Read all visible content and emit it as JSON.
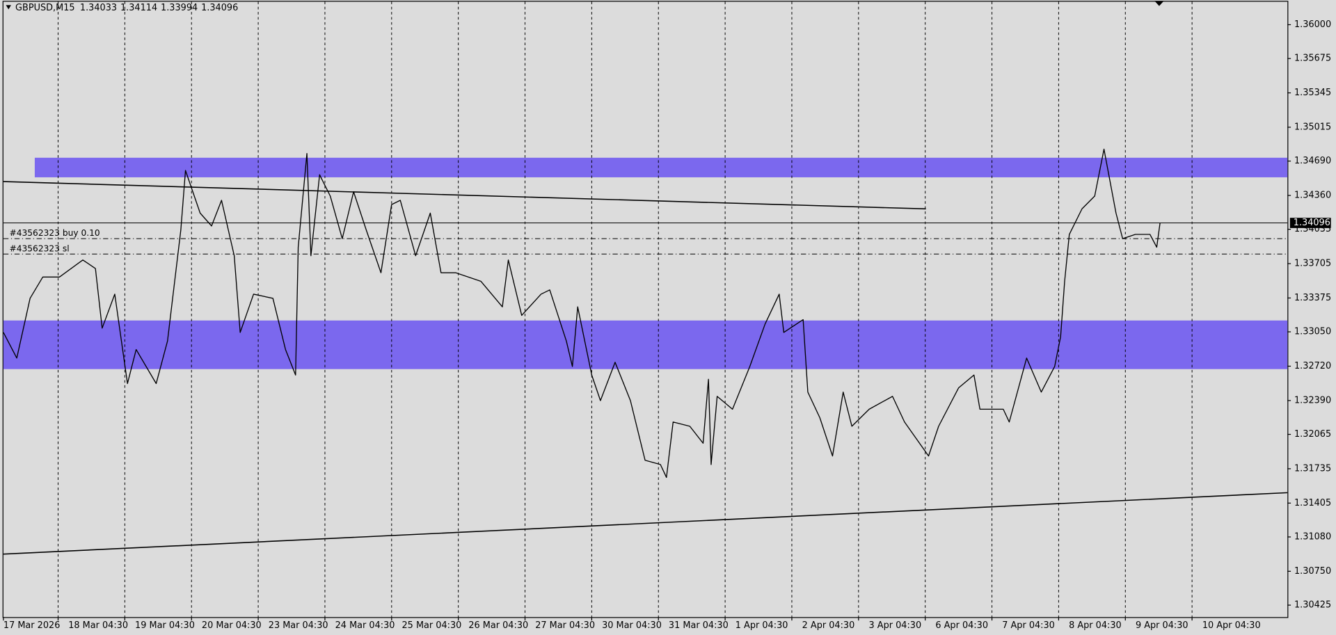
{
  "chart_data": {
    "type": "line",
    "title": "GBPUSD,M15",
    "ohlc": [
      1.34033,
      1.34114,
      1.33994,
      1.34096
    ],
    "color": "#000000",
    "x": [
      0,
      0.2,
      0.4,
      0.59,
      0.84,
      1.19,
      1.38,
      1.48,
      1.67,
      1.86,
      1.99,
      2.29,
      2.46,
      2.66,
      2.73,
      2.95,
      3.12,
      3.27,
      3.46,
      3.55,
      3.75,
      4.04,
      4.23,
      4.38,
      4.42,
      4.55,
      4.61,
      4.74,
      4.9,
      5.08,
      5.25,
      5.44,
      5.66,
      5.82,
      5.95,
      6.18,
      6.4,
      6.56,
      6.78,
      7.16,
      7.48,
      7.57,
      7.77,
      8.06,
      8.19,
      8.44,
      8.53,
      8.61,
      8.82,
      8.95,
      9.17,
      9.4,
      9.62,
      9.85,
      9.94,
      10.04,
      10.29,
      10.49,
      10.57,
      10.61,
      10.7,
      10.93,
      11.19,
      11.42,
      11.63,
      11.7,
      11.99,
      12.06,
      12.24,
      12.43,
      12.59,
      12.72,
      12.98,
      13.33,
      13.51,
      13.87,
      14.02,
      14.32,
      14.55,
      14.64,
      14.99,
      15.08,
      15.34,
      15.56,
      15.76,
      15.85,
      15.91,
      15.98,
      16.17,
      16.36,
      16.5,
      16.68,
      16.78,
      16.97,
      17.19,
      17.29,
      17.34
    ],
    "values": [
      1.33044,
      1.32798,
      1.33372,
      1.33576,
      1.33576,
      1.3374,
      1.33658,
      1.33085,
      1.33412,
      1.32553,
      1.3288,
      1.32553,
      1.32962,
      1.34027,
      1.346,
      1.3419,
      1.34067,
      1.34313,
      1.33781,
      1.33044,
      1.33412,
      1.33372,
      1.3288,
      1.32635,
      1.33863,
      1.34763,
      1.33781,
      1.34559,
      1.34354,
      1.33945,
      1.34395,
      1.34027,
      1.33617,
      1.34272,
      1.34313,
      1.33781,
      1.3419,
      1.33617,
      1.33617,
      1.33535,
      1.3329,
      1.3374,
      1.33208,
      1.33412,
      1.33453,
      1.32962,
      1.32717,
      1.3329,
      1.32635,
      1.32389,
      1.32758,
      1.32389,
      1.31816,
      1.31775,
      1.31652,
      1.32184,
      1.32143,
      1.3198,
      1.32594,
      1.31775,
      1.3243,
      1.32307,
      1.32717,
      1.33126,
      1.33412,
      1.33044,
      1.33167,
      1.32471,
      1.32225,
      1.31857,
      1.32471,
      1.32143,
      1.32307,
      1.3243,
      1.32184,
      1.31857,
      1.32143,
      1.32512,
      1.32635,
      1.32307,
      1.32307,
      1.32184,
      1.32798,
      1.32471,
      1.32717,
      1.33003,
      1.33535,
      1.33986,
      1.34231,
      1.34354,
      1.34804,
      1.3419,
      1.33945,
      1.33986,
      1.33986,
      1.33863,
      1.34096
    ],
    "xlim": [
      0,
      19.25
    ],
    "ylim": [
      1.3031,
      1.36237
    ],
    "xticks": [
      {
        "value": 0,
        "label": "17 Mar 2026"
      },
      {
        "value": 0.82,
        "label": "18 Mar 04:30"
      },
      {
        "value": 1.82,
        "label": "19 Mar 04:30"
      },
      {
        "value": 2.82,
        "label": "20 Mar 04:30"
      },
      {
        "value": 3.82,
        "label": "23 Mar 04:30"
      },
      {
        "value": 4.82,
        "label": "24 Mar 04:30"
      },
      {
        "value": 5.82,
        "label": "25 Mar 04:30"
      },
      {
        "value": 6.82,
        "label": "26 Mar 04:30"
      },
      {
        "value": 7.82,
        "label": "27 Mar 04:30"
      },
      {
        "value": 8.82,
        "label": "30 Mar 04:30"
      },
      {
        "value": 9.82,
        "label": "31 Mar 04:30"
      },
      {
        "value": 10.82,
        "label": "1 Apr 04:30"
      },
      {
        "value": 11.82,
        "label": "2 Apr 04:30"
      },
      {
        "value": 12.82,
        "label": "3 Apr 04:30"
      },
      {
        "value": 13.82,
        "label": "6 Apr 04:30"
      },
      {
        "value": 14.82,
        "label": "7 Apr 04:30"
      },
      {
        "value": 15.82,
        "label": "8 Apr 04:30"
      },
      {
        "value": 16.82,
        "label": "9 Apr 04:30"
      },
      {
        "value": 17.82,
        "label": "10 Apr 04:30"
      }
    ],
    "yticks": [
      {
        "value": 1.36,
        "label": "1.36000"
      },
      {
        "value": 1.35675,
        "label": "1.35675"
      },
      {
        "value": 1.35345,
        "label": "1.35345"
      },
      {
        "value": 1.35015,
        "label": "1.35015"
      },
      {
        "value": 1.3469,
        "label": "1.34690"
      },
      {
        "value": 1.3436,
        "label": "1.34360"
      },
      {
        "value": 1.34035,
        "label": "1.34035"
      },
      {
        "value": 1.33705,
        "label": "1.33705"
      },
      {
        "value": 1.33375,
        "label": "1.33375"
      },
      {
        "value": 1.3305,
        "label": "1.33050"
      },
      {
        "value": 1.3272,
        "label": "1.32720"
      },
      {
        "value": 1.3239,
        "label": "1.32390"
      },
      {
        "value": 1.32065,
        "label": "1.32065"
      },
      {
        "value": 1.31735,
        "label": "1.31735"
      },
      {
        "value": 1.31405,
        "label": "1.31405"
      },
      {
        "value": 1.3108,
        "label": "1.31080"
      },
      {
        "value": 1.3075,
        "label": "1.30750"
      },
      {
        "value": 1.30425,
        "label": "1.30425"
      }
    ],
    "grid": true,
    "zones": [
      {
        "x": [
          0.47,
          19.25
        ],
        "top": 1.34722,
        "bottom": 1.34534,
        "color": "#7b68ee"
      },
      {
        "x": [
          0,
          19.25
        ],
        "top": 1.33159,
        "bottom": 1.32692,
        "color": "#7b68ee"
      }
    ],
    "trendlines": [
      {
        "x": [
          0,
          13.83
        ],
        "y": [
          1.34493,
          1.34231
        ]
      },
      {
        "x": [
          0,
          19.25
        ],
        "y": [
          1.30915,
          1.31505
        ]
      }
    ],
    "price_line": {
      "value": 1.34096,
      "label": "1.34096"
    },
    "orders": [
      {
        "label": "#43562323 buy 0.10",
        "price": 1.33945
      },
      {
        "label": "#43562323 sl",
        "price": 1.33797
      }
    ]
  }
}
